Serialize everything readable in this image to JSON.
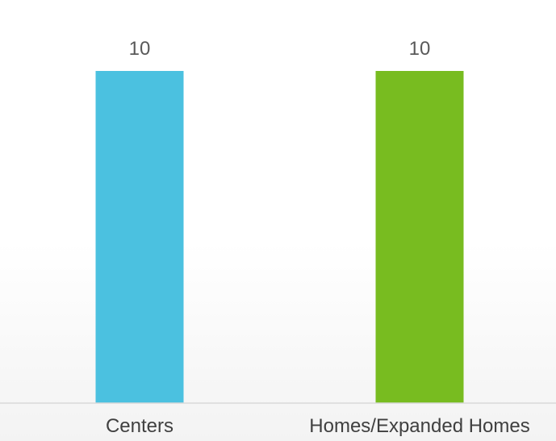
{
  "chart_data": {
    "type": "bar",
    "categories": [
      "Centers",
      "Homes/Expanded Homes"
    ],
    "values": [
      10,
      10
    ],
    "data_labels": [
      "10",
      "10"
    ],
    "colors": [
      "#4BC1E0",
      "#78BC20"
    ],
    "axis_color": "#D9D9D9",
    "title": "",
    "xlabel": "",
    "ylabel": "",
    "ylim": [
      0,
      10
    ],
    "grid": false,
    "legend": "none"
  }
}
